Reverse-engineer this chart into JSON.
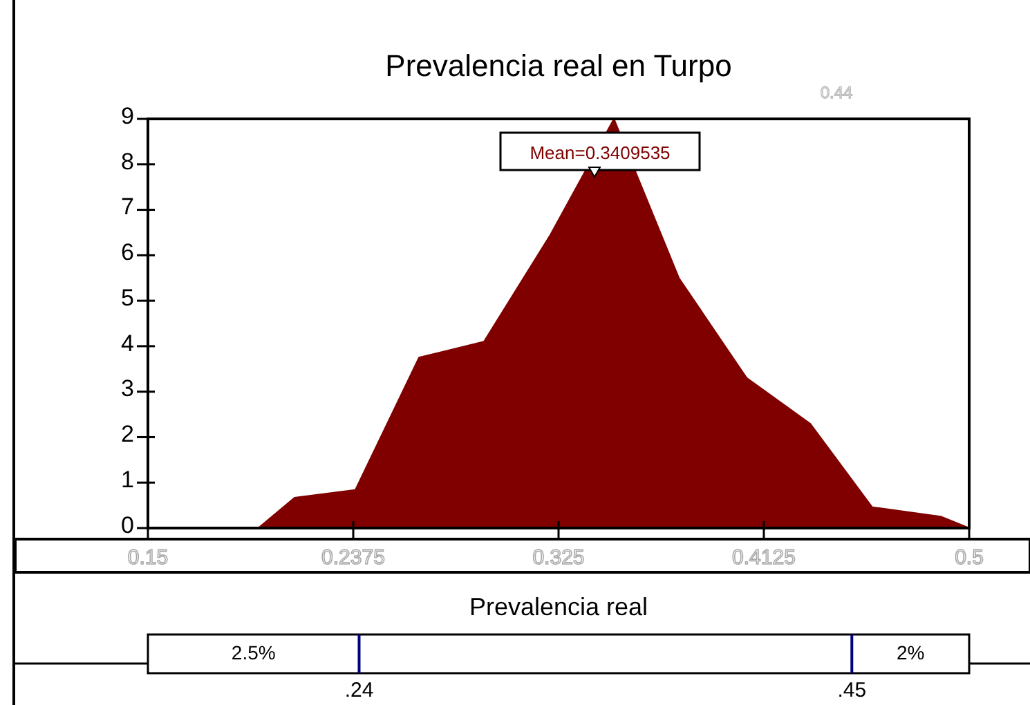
{
  "chart_data": {
    "type": "area",
    "title": "Prevalencia real en Turpo",
    "xlabel": "Prevalencia real",
    "x": [
      0.15,
      0.197,
      0.2125,
      0.2384,
      0.2655,
      0.2932,
      0.3215,
      0.3486,
      0.3763,
      0.4052,
      0.4322,
      0.4587,
      0.4882,
      0.5
    ],
    "series": [
      {
        "color": "#800000",
        "values": [
          0,
          0,
          0.67,
          0.84,
          3.75,
          4.1,
          6.45,
          9,
          5.5,
          3.3,
          2.3,
          0.46,
          0.25,
          0
        ]
      }
    ],
    "xlim": [
      0.15,
      0.5
    ],
    "xticks": [
      0.15,
      0.2375,
      0.325,
      0.4125,
      0.5
    ],
    "ylim": [
      0,
      9
    ],
    "yticks": [
      0,
      1,
      2,
      3,
      4,
      5,
      6,
      7,
      8,
      9
    ],
    "grid": false,
    "ref_lines": [
      {
        "axis": "x",
        "value": 0.24,
        "label": ".24",
        "color": "#000080"
      },
      {
        "axis": "x",
        "value": 0.45,
        "label": ".45",
        "color": "#000080"
      }
    ],
    "annotations": [
      "Mean=0.3409535",
      "0.44",
      "2.5%",
      "2%"
    ]
  }
}
